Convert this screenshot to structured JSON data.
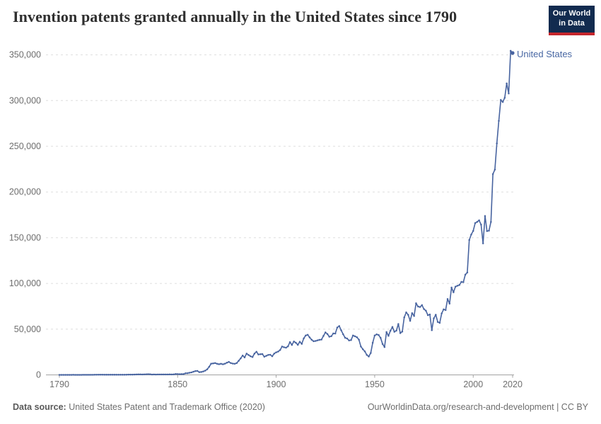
{
  "header": {
    "title": "Invention patents granted annually in the United States since 1790",
    "logo": {
      "line1": "Our World",
      "line2": "in Data"
    }
  },
  "footer": {
    "source_label": "Data source:",
    "source_value": " United States Patent and Trademark Office (2020)",
    "link": "OurWorldinData.org/research-and-development | CC BY"
  },
  "colors": {
    "line": "#4864a0",
    "series_label": "#4867a3",
    "grid": "#dedede",
    "axis": "#a3a3a3",
    "tick_text": "#6e6e6e",
    "title_text": "#2f2f2f",
    "logo_bg": "#122b4f",
    "logo_red": "#c5262c"
  },
  "chart_data": {
    "type": "line",
    "title": "Invention patents granted annually in the United States since 1790",
    "xlabel": "",
    "ylabel": "",
    "xlim": [
      1790,
      2023
    ],
    "ylim": [
      0,
      350000
    ],
    "grid": "horizontal-dashed",
    "legend_position": "end-of-line",
    "x_ticks": [
      1790,
      1850,
      1900,
      1950,
      2000,
      2020
    ],
    "y_ticks": [
      0,
      50000,
      100000,
      150000,
      200000,
      250000,
      300000,
      350000
    ],
    "series": [
      {
        "name": "United States",
        "color": "#4864a0",
        "points": [
          [
            1790,
            3
          ],
          [
            1791,
            33
          ],
          [
            1792,
            11
          ],
          [
            1793,
            20
          ],
          [
            1794,
            22
          ],
          [
            1795,
            12
          ],
          [
            1796,
            44
          ],
          [
            1797,
            51
          ],
          [
            1798,
            28
          ],
          [
            1799,
            44
          ],
          [
            1800,
            41
          ],
          [
            1801,
            44
          ],
          [
            1802,
            65
          ],
          [
            1803,
            97
          ],
          [
            1804,
            84
          ],
          [
            1805,
            57
          ],
          [
            1806,
            63
          ],
          [
            1807,
            99
          ],
          [
            1808,
            158
          ],
          [
            1809,
            203
          ],
          [
            1810,
            223
          ],
          [
            1811,
            215
          ],
          [
            1812,
            238
          ],
          [
            1813,
            181
          ],
          [
            1814,
            210
          ],
          [
            1815,
            173
          ],
          [
            1816,
            206
          ],
          [
            1817,
            174
          ],
          [
            1818,
            222
          ],
          [
            1819,
            156
          ],
          [
            1820,
            155
          ],
          [
            1821,
            168
          ],
          [
            1822,
            200
          ],
          [
            1823,
            173
          ],
          [
            1824,
            228
          ],
          [
            1825,
            304
          ],
          [
            1826,
            323
          ],
          [
            1827,
            331
          ],
          [
            1828,
            368
          ],
          [
            1829,
            447
          ],
          [
            1830,
            544
          ],
          [
            1831,
            573
          ],
          [
            1832,
            474
          ],
          [
            1833,
            586
          ],
          [
            1834,
            630
          ],
          [
            1835,
            752
          ],
          [
            1836,
            702
          ],
          [
            1837,
            426
          ],
          [
            1838,
            514
          ],
          [
            1839,
            404
          ],
          [
            1840,
            458
          ],
          [
            1841,
            490
          ],
          [
            1842,
            488
          ],
          [
            1843,
            493
          ],
          [
            1844,
            478
          ],
          [
            1845,
            473
          ],
          [
            1846,
            566
          ],
          [
            1847,
            495
          ],
          [
            1848,
            583
          ],
          [
            1849,
            984
          ],
          [
            1850,
            883
          ],
          [
            1851,
            752
          ],
          [
            1852,
            885
          ],
          [
            1853,
            844
          ],
          [
            1854,
            1755
          ],
          [
            1855,
            1881
          ],
          [
            1856,
            2302
          ],
          [
            1857,
            2674
          ],
          [
            1858,
            3455
          ],
          [
            1859,
            4160
          ],
          [
            1860,
            4357
          ],
          [
            1861,
            3020
          ],
          [
            1862,
            3214
          ],
          [
            1863,
            3773
          ],
          [
            1864,
            4630
          ],
          [
            1865,
            6088
          ],
          [
            1866,
            8863
          ],
          [
            1867,
            12277
          ],
          [
            1868,
            12526
          ],
          [
            1869,
            12931
          ],
          [
            1870,
            12137
          ],
          [
            1871,
            11659
          ],
          [
            1872,
            12180
          ],
          [
            1873,
            11616
          ],
          [
            1874,
            12230
          ],
          [
            1875,
            13291
          ],
          [
            1876,
            14169
          ],
          [
            1877,
            12920
          ],
          [
            1878,
            12345
          ],
          [
            1879,
            12165
          ],
          [
            1880,
            12902
          ],
          [
            1881,
            15500
          ],
          [
            1882,
            18091
          ],
          [
            1883,
            21162
          ],
          [
            1884,
            19118
          ],
          [
            1885,
            23285
          ],
          [
            1886,
            21767
          ],
          [
            1887,
            20403
          ],
          [
            1888,
            19551
          ],
          [
            1889,
            23324
          ],
          [
            1890,
            25313
          ],
          [
            1891,
            22312
          ],
          [
            1892,
            22647
          ],
          [
            1893,
            22750
          ],
          [
            1894,
            19855
          ],
          [
            1895,
            20856
          ],
          [
            1896,
            21822
          ],
          [
            1897,
            22067
          ],
          [
            1898,
            20377
          ],
          [
            1899,
            23278
          ],
          [
            1900,
            24644
          ],
          [
            1901,
            25546
          ],
          [
            1902,
            27119
          ],
          [
            1903,
            31029
          ],
          [
            1904,
            30258
          ],
          [
            1905,
            29775
          ],
          [
            1906,
            31170
          ],
          [
            1907,
            35859
          ],
          [
            1908,
            32735
          ],
          [
            1909,
            36561
          ],
          [
            1910,
            35141
          ],
          [
            1911,
            32856
          ],
          [
            1912,
            36198
          ],
          [
            1913,
            33917
          ],
          [
            1914,
            39892
          ],
          [
            1915,
            43118
          ],
          [
            1916,
            43892
          ],
          [
            1917,
            40935
          ],
          [
            1918,
            38452
          ],
          [
            1919,
            36797
          ],
          [
            1920,
            37060
          ],
          [
            1921,
            37798
          ],
          [
            1922,
            38369
          ],
          [
            1923,
            38616
          ],
          [
            1924,
            42574
          ],
          [
            1925,
            46432
          ],
          [
            1926,
            44733
          ],
          [
            1927,
            41717
          ],
          [
            1928,
            42357
          ],
          [
            1929,
            45267
          ],
          [
            1930,
            45226
          ],
          [
            1931,
            51756
          ],
          [
            1932,
            53458
          ],
          [
            1933,
            48774
          ],
          [
            1934,
            44420
          ],
          [
            1935,
            40618
          ],
          [
            1936,
            39782
          ],
          [
            1937,
            37683
          ],
          [
            1938,
            38061
          ],
          [
            1939,
            43073
          ],
          [
            1940,
            42238
          ],
          [
            1941,
            41109
          ],
          [
            1942,
            38514
          ],
          [
            1943,
            31054
          ],
          [
            1944,
            28053
          ],
          [
            1945,
            25695
          ],
          [
            1946,
            21803
          ],
          [
            1947,
            20139
          ],
          [
            1948,
            23963
          ],
          [
            1949,
            35131
          ],
          [
            1950,
            43040
          ],
          [
            1951,
            44326
          ],
          [
            1952,
            43616
          ],
          [
            1953,
            40468
          ],
          [
            1954,
            33810
          ],
          [
            1955,
            30432
          ],
          [
            1956,
            46817
          ],
          [
            1957,
            42744
          ],
          [
            1958,
            48330
          ],
          [
            1959,
            52408
          ],
          [
            1960,
            47170
          ],
          [
            1961,
            48368
          ],
          [
            1962,
            55691
          ],
          [
            1963,
            45679
          ],
          [
            1964,
            47375
          ],
          [
            1965,
            62857
          ],
          [
            1966,
            68406
          ],
          [
            1967,
            65652
          ],
          [
            1968,
            59102
          ],
          [
            1969,
            67557
          ],
          [
            1970,
            64427
          ],
          [
            1971,
            78316
          ],
          [
            1972,
            74810
          ],
          [
            1973,
            74143
          ],
          [
            1974,
            76278
          ],
          [
            1975,
            71994
          ],
          [
            1976,
            70226
          ],
          [
            1977,
            65269
          ],
          [
            1978,
            66102
          ],
          [
            1979,
            48854
          ],
          [
            1980,
            61819
          ],
          [
            1981,
            65771
          ],
          [
            1982,
            57888
          ],
          [
            1983,
            56860
          ],
          [
            1984,
            67200
          ],
          [
            1985,
            71661
          ],
          [
            1986,
            70860
          ],
          [
            1987,
            82952
          ],
          [
            1988,
            77924
          ],
          [
            1989,
            95537
          ],
          [
            1990,
            90365
          ],
          [
            1991,
            96511
          ],
          [
            1992,
            97444
          ],
          [
            1993,
            98342
          ],
          [
            1994,
            101676
          ],
          [
            1995,
            101419
          ],
          [
            1996,
            109645
          ],
          [
            1997,
            111984
          ],
          [
            1998,
            147520
          ],
          [
            1999,
            153485
          ],
          [
            2000,
            157496
          ],
          [
            2001,
            166035
          ],
          [
            2002,
            167331
          ],
          [
            2003,
            169023
          ],
          [
            2004,
            164291
          ],
          [
            2005,
            143806
          ],
          [
            2006,
            173772
          ],
          [
            2007,
            157282
          ],
          [
            2008,
            157772
          ],
          [
            2009,
            167349
          ],
          [
            2010,
            219614
          ],
          [
            2011,
            224505
          ],
          [
            2012,
            253155
          ],
          [
            2013,
            277835
          ],
          [
            2014,
            300678
          ],
          [
            2015,
            298407
          ],
          [
            2016,
            303049
          ],
          [
            2017,
            318829
          ],
          [
            2018,
            307759
          ],
          [
            2019,
            354430
          ],
          [
            2020,
            351993
          ]
        ]
      }
    ]
  }
}
